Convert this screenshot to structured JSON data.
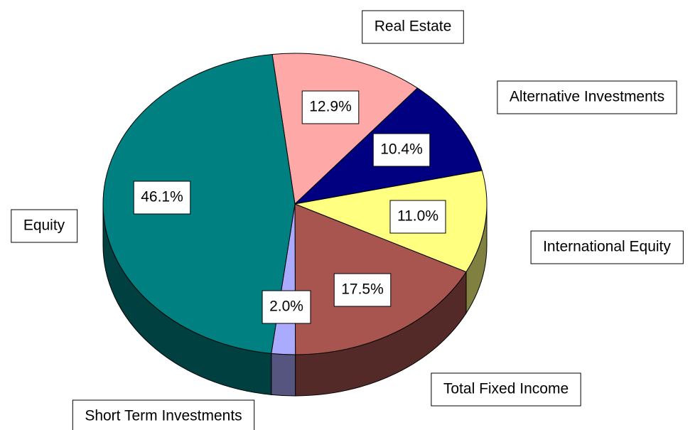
{
  "chart_data": {
    "type": "pie",
    "categories": [
      "Real Estate",
      "Alternative Investments",
      "International Equity",
      "Total Fixed Income",
      "Short Term Investments",
      "Equity"
    ],
    "values": [
      12.9,
      10.4,
      11.0,
      17.5,
      2.0,
      46.1
    ],
    "value_labels": [
      "12.9%",
      "10.4%",
      "11.0%",
      "17.5%",
      "2.0%",
      "46.1%"
    ],
    "colors": [
      "#ffa8a8",
      "#000080",
      "#ffff80",
      "#a8544f",
      "#aaaaff",
      "#008080"
    ]
  }
}
